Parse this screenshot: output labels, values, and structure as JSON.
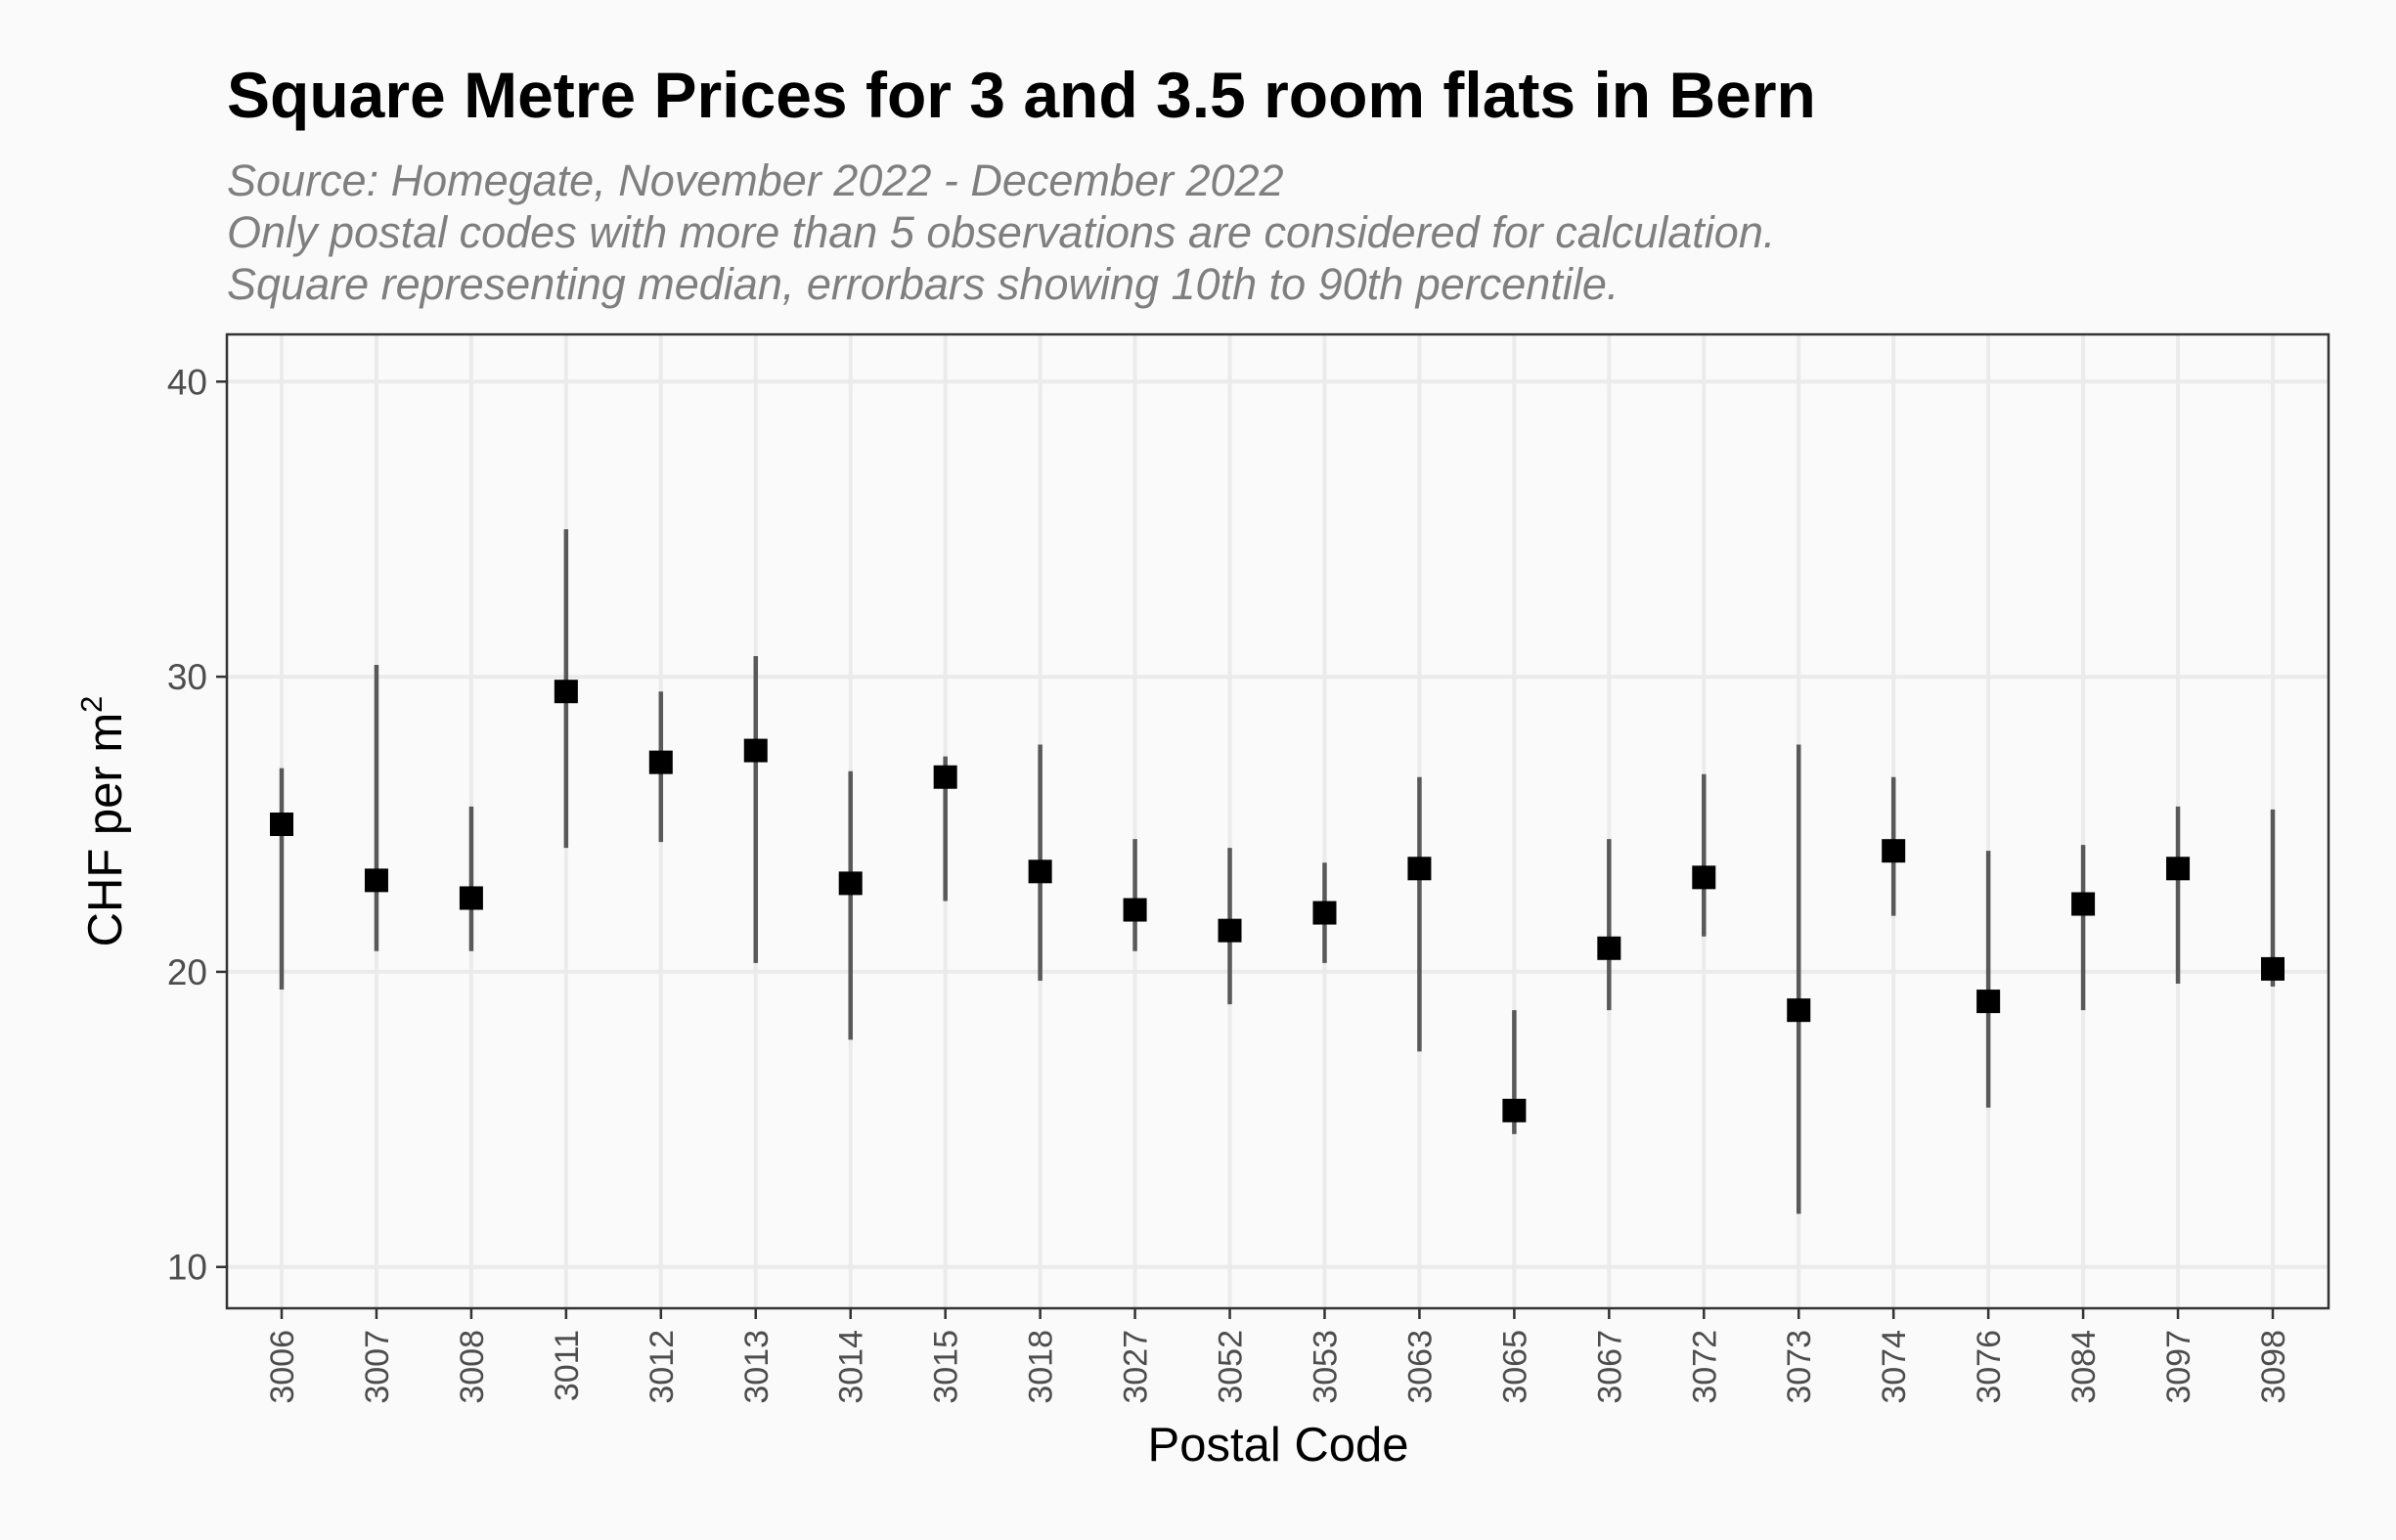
{
  "chart_data": {
    "type": "scatter",
    "title": "Square Metre Prices for 3 and 3.5 room flats in Bern",
    "subtitle_lines": [
      "Source: Homegate, November 2022 - December 2022",
      "Only postal codes with more than 5 observations are considered for calculation.",
      "Square representing median, errorbars showing 10th to 90th percentile."
    ],
    "xlabel": "Postal Code",
    "ylabel_main": "CHF per m",
    "ylabel_superscript": "2",
    "ylim": [
      8.6,
      41.6
    ],
    "yticks": [
      10,
      20,
      30,
      40
    ],
    "grid": true,
    "marker": "square",
    "categories": [
      "3006",
      "3007",
      "3008",
      "3011",
      "3012",
      "3013",
      "3014",
      "3015",
      "3018",
      "3027",
      "3052",
      "3053",
      "3063",
      "3065",
      "3067",
      "3072",
      "3073",
      "3074",
      "3076",
      "3084",
      "3097",
      "3098"
    ],
    "median": [
      25.0,
      23.1,
      22.5,
      29.5,
      27.1,
      27.5,
      23.0,
      26.6,
      23.4,
      22.1,
      21.4,
      22.0,
      23.5,
      15.3,
      20.8,
      23.2,
      18.7,
      24.1,
      19.0,
      22.3,
      23.5,
      20.1
    ],
    "p10": [
      19.4,
      20.7,
      20.7,
      24.2,
      24.4,
      20.3,
      17.7,
      22.4,
      19.7,
      20.7,
      18.9,
      20.3,
      17.3,
      14.5,
      18.7,
      21.2,
      11.8,
      21.9,
      15.4,
      18.7,
      19.6,
      19.5
    ],
    "p90": [
      26.9,
      30.4,
      25.6,
      35.0,
      29.5,
      30.7,
      26.8,
      27.3,
      27.7,
      24.5,
      24.2,
      23.7,
      26.6,
      18.7,
      24.5,
      26.7,
      27.7,
      26.6,
      24.1,
      24.3,
      25.6,
      25.5
    ],
    "colors": {
      "background": "#fafafa",
      "panel": "#fafafa",
      "grid": "#ebebeb",
      "errorbar": "#595959",
      "point": "#000000",
      "subtitle": "#7f7f7f"
    }
  }
}
